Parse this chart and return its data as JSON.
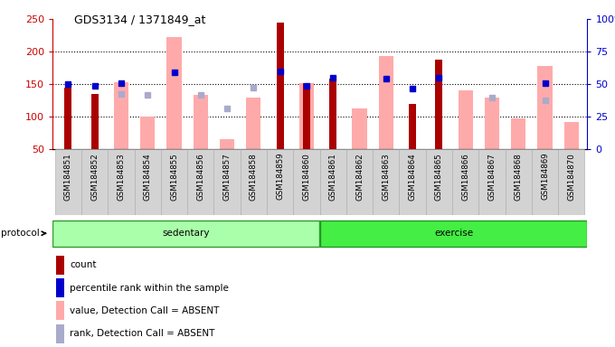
{
  "title": "GDS3134 / 1371849_at",
  "samples": [
    "GSM184851",
    "GSM184852",
    "GSM184853",
    "GSM184854",
    "GSM184855",
    "GSM184856",
    "GSM184857",
    "GSM184858",
    "GSM184859",
    "GSM184860",
    "GSM184861",
    "GSM184862",
    "GSM184863",
    "GSM184864",
    "GSM184865",
    "GSM184866",
    "GSM184867",
    "GSM184868",
    "GSM184869",
    "GSM184870"
  ],
  "count_values": [
    145,
    135,
    null,
    null,
    null,
    null,
    null,
    null,
    245,
    152,
    158,
    null,
    null,
    120,
    188,
    null,
    null,
    null,
    null,
    null
  ],
  "absent_value_values": [
    null,
    null,
    153,
    100,
    222,
    133,
    65,
    130,
    null,
    152,
    null,
    113,
    193,
    null,
    null,
    140,
    130,
    97,
    178,
    92
  ],
  "rank_present_values": [
    150,
    148,
    152,
    null,
    168,
    null,
    null,
    null,
    170,
    148,
    160,
    null,
    158,
    143,
    160,
    null,
    null,
    null,
    152,
    null
  ],
  "rank_absent_values": [
    null,
    null,
    135,
    133,
    null,
    133,
    112,
    145,
    null,
    null,
    null,
    null,
    null,
    null,
    null,
    null,
    130,
    null,
    125,
    null
  ],
  "sedentary_count": 10,
  "exercise_count": 10,
  "ylim_left": [
    50,
    250
  ],
  "ylim_right": [
    0,
    100
  ],
  "yticks_left": [
    50,
    100,
    150,
    200,
    250
  ],
  "yticks_right": [
    0,
    25,
    50,
    75,
    100
  ],
  "left_axis_color": "#cc0000",
  "right_axis_color": "#0000cc",
  "count_color": "#aa0000",
  "absent_value_color": "#ffaaaa",
  "rank_present_color": "#0000cc",
  "rank_absent_color": "#aaaacc",
  "sedentary_color": "#aaffaa",
  "exercise_color": "#44ee44",
  "grid_ticks": [
    100,
    150,
    200
  ],
  "bar_width": 0.55,
  "count_bar_width": 0.28,
  "legend_labels": [
    "count",
    "percentile rank within the sample",
    "value, Detection Call = ABSENT",
    "rank, Detection Call = ABSENT"
  ],
  "legend_colors": [
    "#aa0000",
    "#0000cc",
    "#ffaaaa",
    "#aaaacc"
  ]
}
